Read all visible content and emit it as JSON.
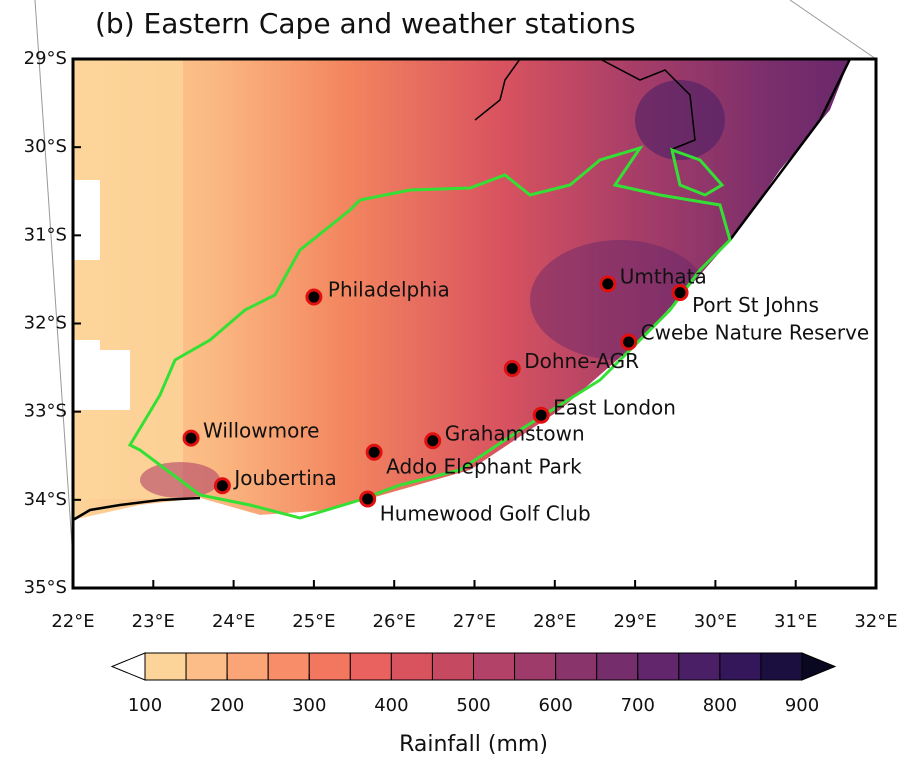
{
  "map": {
    "title": "(b) Eastern Cape and weather stations",
    "xlim": [
      22,
      32
    ],
    "ylim": [
      -35,
      -29
    ],
    "xticks": [
      {
        "value": 22,
        "label": "22°E"
      },
      {
        "value": 23,
        "label": "23°E"
      },
      {
        "value": 24,
        "label": "24°E"
      },
      {
        "value": 25,
        "label": "25°E"
      },
      {
        "value": 26,
        "label": "26°E"
      },
      {
        "value": 27,
        "label": "27°E"
      },
      {
        "value": 28,
        "label": "28°E"
      },
      {
        "value": 29,
        "label": "29°E"
      },
      {
        "value": 30,
        "label": "30°E"
      },
      {
        "value": 31,
        "label": "31°E"
      },
      {
        "value": 32,
        "label": "32°E"
      }
    ],
    "yticks": [
      {
        "value": -29,
        "label": "29°S"
      },
      {
        "value": -30,
        "label": "30°S"
      },
      {
        "value": -31,
        "label": "31°S"
      },
      {
        "value": -32,
        "label": "32°S"
      },
      {
        "value": -33,
        "label": "33°S"
      },
      {
        "value": -34,
        "label": "34°S"
      },
      {
        "value": -35,
        "label": "35°S"
      }
    ],
    "stations": [
      {
        "name": "Philadelphia",
        "lon": 25.0,
        "lat": -31.7
      },
      {
        "name": "Umthata",
        "lon": 28.66,
        "lat": -31.55
      },
      {
        "name": "Port St Johns",
        "lon": 29.56,
        "lat": -31.65
      },
      {
        "name": "Cwebe Nature Reserve",
        "lon": 28.92,
        "lat": -32.21
      },
      {
        "name": "Dohne-AGR",
        "lon": 27.47,
        "lat": -32.51
      },
      {
        "name": "East London",
        "lon": 27.83,
        "lat": -33.04
      },
      {
        "name": "Grahamstown",
        "lon": 26.48,
        "lat": -33.33
      },
      {
        "name": "Addo Elephant Park",
        "lon": 25.75,
        "lat": -33.46
      },
      {
        "name": "Humewood Golf Club",
        "lon": 25.67,
        "lat": -33.99
      },
      {
        "name": "Willowmore",
        "lon": 23.47,
        "lat": -33.3
      },
      {
        "name": "Joubertina",
        "lon": 23.86,
        "lat": -33.84
      }
    ],
    "colorbar": {
      "label": "Rainfall (mm)",
      "ticks": [
        100,
        200,
        300,
        400,
        500,
        600,
        700,
        800,
        900
      ],
      "colors": [
        "#fcd49a",
        "#fcbd88",
        "#fba577",
        "#f88d6a",
        "#f3765f",
        "#e9625f",
        "#d9535f",
        "#c64962",
        "#b24267",
        "#9e3b6a",
        "#8a346c",
        "#762d6c",
        "#61266b",
        "#4b1f66",
        "#33175a",
        "#1b0f3f"
      ],
      "under_color": "#ffffff",
      "over_color": "#0a0820"
    }
  }
}
